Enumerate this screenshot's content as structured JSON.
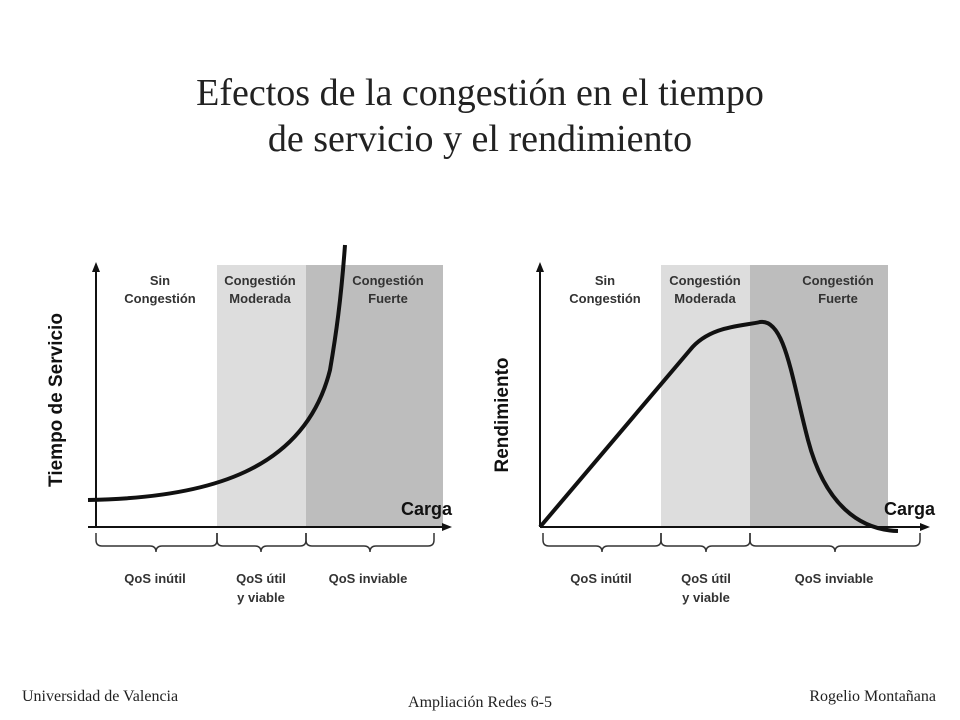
{
  "title": {
    "line1": "Efectos de la congestión en el tiempo",
    "line2": "de servicio y el rendimiento"
  },
  "colors": {
    "no_congestion": "#ffffff",
    "moderate": "#dddddd",
    "heavy": "#bdbdbd",
    "curve": "#111111"
  },
  "left_chart": {
    "ylabel": "Tiempo de Servicio",
    "xlabel": "Carga",
    "zones": [
      {
        "line1": "Sin",
        "line2": "Congestión"
      },
      {
        "line1": "Congestión",
        "line2": "Moderada"
      },
      {
        "line1": "Congestión",
        "line2": "Fuerte"
      }
    ],
    "qos": [
      {
        "line1": "QoS inútil",
        "line2": ""
      },
      {
        "line1": "QoS útil",
        "line2": "y viable"
      },
      {
        "line1": "QoS inviable",
        "line2": ""
      }
    ]
  },
  "right_chart": {
    "ylabel": "Rendimiento",
    "xlabel": "Carga",
    "zones": [
      {
        "line1": "Sin",
        "line2": "Congestión"
      },
      {
        "line1": "Congestión",
        "line2": "Moderada"
      },
      {
        "line1": "Congestión",
        "line2": "Fuerte"
      }
    ],
    "qos": [
      {
        "line1": "QoS inútil",
        "line2": ""
      },
      {
        "line1": "QoS útil",
        "line2": "y viable"
      },
      {
        "line1": "QoS inviable",
        "line2": ""
      }
    ]
  },
  "footer": {
    "left": "Universidad de Valencia",
    "center": "Ampliación Redes 6-5",
    "right": "Rogelio Montañana"
  }
}
